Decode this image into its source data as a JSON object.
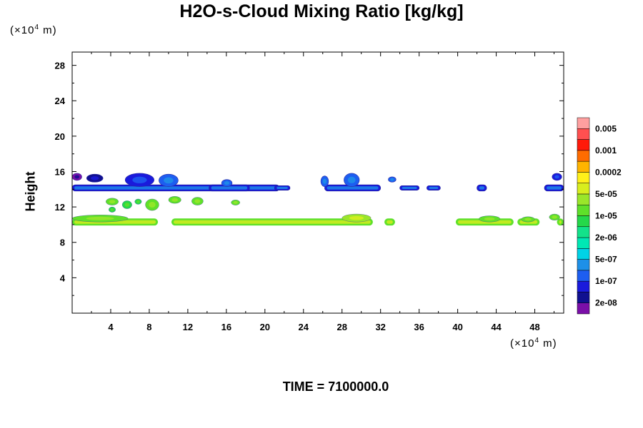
{
  "chart_data": {
    "type": "heatmap",
    "title": "H2O-s-Cloud Mixing Ratio [kg/kg]",
    "ylabel": "Height",
    "y_unit_prefix": "(×10",
    "y_unit_exp": "4",
    "y_unit_suffix": " m)",
    "x_unit_prefix": "(×10",
    "x_unit_exp": "4",
    "x_unit_suffix": " m)",
    "footer": "TIME = 7100000.0",
    "xlim": [
      0,
      51
    ],
    "ylim": [
      0,
      29.5
    ],
    "x_ticks": [
      4,
      8,
      12,
      16,
      20,
      24,
      28,
      32,
      36,
      40,
      44,
      48
    ],
    "x_tick_labels": [
      "4",
      "8",
      "12",
      "16",
      "20",
      "24",
      "28",
      "32",
      "36",
      "40",
      "44",
      "48"
    ],
    "y_ticks": [
      4,
      8,
      12,
      16,
      20,
      24,
      28
    ],
    "y_tick_labels": [
      "4",
      "8",
      "12",
      "16",
      "20",
      "24",
      "28"
    ],
    "colorbar": {
      "colors": [
        "#7a0fa8",
        "#101090",
        "#1a1adc",
        "#1d5ef0",
        "#1e90e8",
        "#00d2e6",
        "#00e8b4",
        "#13e28a",
        "#25d84a",
        "#5fe02a",
        "#9ae62a",
        "#d8ee1e",
        "#fff01a",
        "#ffb400",
        "#ff6c00",
        "#ff1a0a",
        "#ff5050",
        "#ffa0a0"
      ],
      "labels": [
        "2e-08",
        "1e-07",
        "5e-07",
        "2e-06",
        "1e-05",
        "5e-05",
        "0.0002",
        "0.001",
        "0.005"
      ]
    },
    "features": [
      {
        "layer": "upper",
        "shape": "band",
        "x": [
          0.0,
          21.5
        ],
        "y": [
          13.8,
          14.5
        ],
        "level": 3
      },
      {
        "layer": "upper",
        "shape": "band",
        "x": [
          14.2,
          18.4
        ],
        "y": [
          13.8,
          14.5
        ],
        "level": 3
      },
      {
        "layer": "upper",
        "shape": "band",
        "x": [
          21.0,
          22.6
        ],
        "y": [
          13.9,
          14.4
        ],
        "level": 3
      },
      {
        "layer": "upper",
        "shape": "band",
        "x": [
          26.2,
          32.0
        ],
        "y": [
          13.8,
          14.5
        ],
        "level": 3
      },
      {
        "layer": "upper",
        "shape": "band",
        "x": [
          34.0,
          36.0
        ],
        "y": [
          13.9,
          14.4
        ],
        "level": 3
      },
      {
        "layer": "upper",
        "shape": "band",
        "x": [
          36.8,
          38.2
        ],
        "y": [
          13.9,
          14.4
        ],
        "level": 3
      },
      {
        "layer": "upper",
        "shape": "band",
        "x": [
          42.0,
          43.0
        ],
        "y": [
          13.8,
          14.5
        ],
        "level": 3
      },
      {
        "layer": "upper",
        "shape": "band",
        "x": [
          49.0,
          51.0
        ],
        "y": [
          13.8,
          14.5
        ],
        "level": 3
      },
      {
        "layer": "upper",
        "shape": "blob",
        "x": [
          5.5,
          8.5
        ],
        "y": [
          14.3,
          15.8
        ],
        "level": 2
      },
      {
        "layer": "upper",
        "shape": "blob",
        "x": [
          9.0,
          11.0
        ],
        "y": [
          14.3,
          15.7
        ],
        "level": 3
      },
      {
        "layer": "upper",
        "shape": "blob",
        "x": [
          1.5,
          3.2
        ],
        "y": [
          14.8,
          15.7
        ],
        "level": 1
      },
      {
        "layer": "upper",
        "shape": "blob",
        "x": [
          0.0,
          1.0
        ],
        "y": [
          15.0,
          15.8
        ],
        "level": 0
      },
      {
        "layer": "upper",
        "shape": "blob",
        "x": [
          15.5,
          16.6
        ],
        "y": [
          14.3,
          15.1
        ],
        "level": 3
      },
      {
        "layer": "upper",
        "shape": "blob",
        "x": [
          25.8,
          26.6
        ],
        "y": [
          14.3,
          15.5
        ],
        "level": 3
      },
      {
        "layer": "upper",
        "shape": "blob",
        "x": [
          28.2,
          29.8
        ],
        "y": [
          14.3,
          15.8
        ],
        "level": 3
      },
      {
        "layer": "upper",
        "shape": "blob",
        "x": [
          32.8,
          33.6
        ],
        "y": [
          14.8,
          15.4
        ],
        "level": 3
      },
      {
        "layer": "upper",
        "shape": "blob",
        "x": [
          49.8,
          50.8
        ],
        "y": [
          15.0,
          15.8
        ],
        "level": 2
      },
      {
        "layer": "lower",
        "shape": "band",
        "x": [
          0.0,
          8.9
        ],
        "y": [
          9.9,
          10.7
        ],
        "level": 10
      },
      {
        "layer": "lower",
        "shape": "band",
        "x": [
          10.3,
          31.2
        ],
        "y": [
          9.9,
          10.7
        ],
        "level": 10
      },
      {
        "layer": "lower",
        "shape": "band",
        "x": [
          32.4,
          33.5
        ],
        "y": [
          9.9,
          10.7
        ],
        "level": 10
      },
      {
        "layer": "lower",
        "shape": "band",
        "x": [
          39.8,
          45.8
        ],
        "y": [
          9.9,
          10.7
        ],
        "level": 10
      },
      {
        "layer": "lower",
        "shape": "band",
        "x": [
          46.2,
          48.5
        ],
        "y": [
          9.9,
          10.7
        ],
        "level": 10
      },
      {
        "layer": "lower",
        "shape": "band",
        "x": [
          50.3,
          51.0
        ],
        "y": [
          9.9,
          10.7
        ],
        "level": 10
      },
      {
        "layer": "lower",
        "shape": "blob",
        "x": [
          0.0,
          5.8
        ],
        "y": [
          10.3,
          11.1
        ],
        "level": 9
      },
      {
        "layer": "lower",
        "shape": "blob",
        "x": [
          28.0,
          31.0
        ],
        "y": [
          10.3,
          11.2
        ],
        "level": 10
      },
      {
        "layer": "lower",
        "shape": "blob",
        "x": [
          42.2,
          44.4
        ],
        "y": [
          10.3,
          11.0
        ],
        "level": 9
      },
      {
        "layer": "lower",
        "shape": "blob",
        "x": [
          46.6,
          48.0
        ],
        "y": [
          10.3,
          10.9
        ],
        "level": 9
      },
      {
        "layer": "lower",
        "shape": "blob",
        "x": [
          49.5,
          50.6
        ],
        "y": [
          10.5,
          11.2
        ],
        "level": 9
      },
      {
        "layer": "lower",
        "shape": "blob",
        "x": [
          3.5,
          4.8
        ],
        "y": [
          12.2,
          13.0
        ],
        "level": 9
      },
      {
        "layer": "lower",
        "shape": "blob",
        "x": [
          5.2,
          6.2
        ],
        "y": [
          11.8,
          12.7
        ],
        "level": 8
      },
      {
        "layer": "lower",
        "shape": "blob",
        "x": [
          6.5,
          7.2
        ],
        "y": [
          12.3,
          12.9
        ],
        "level": 8
      },
      {
        "layer": "lower",
        "shape": "blob",
        "x": [
          7.6,
          9.0
        ],
        "y": [
          11.6,
          12.9
        ],
        "level": 9
      },
      {
        "layer": "lower",
        "shape": "blob",
        "x": [
          10.0,
          11.3
        ],
        "y": [
          12.4,
          13.2
        ],
        "level": 9
      },
      {
        "layer": "lower",
        "shape": "blob",
        "x": [
          12.4,
          13.6
        ],
        "y": [
          12.2,
          13.1
        ],
        "level": 9
      },
      {
        "layer": "lower",
        "shape": "blob",
        "x": [
          16.5,
          17.4
        ],
        "y": [
          12.2,
          12.8
        ],
        "level": 9
      },
      {
        "layer": "lower",
        "shape": "blob",
        "x": [
          3.8,
          4.5
        ],
        "y": [
          11.4,
          12.0
        ],
        "level": 8
      }
    ]
  }
}
